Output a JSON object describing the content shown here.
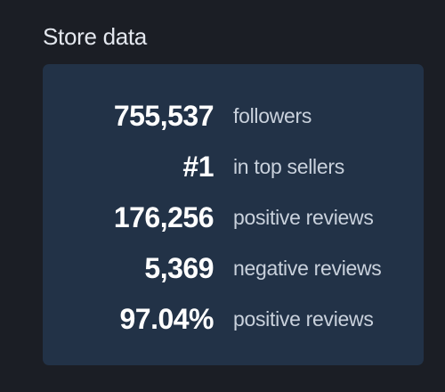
{
  "title": "Store data",
  "stats": [
    {
      "value": "755,537",
      "label": "followers"
    },
    {
      "value": "#1",
      "label": "in top sellers"
    },
    {
      "value": "176,256",
      "label": "positive reviews"
    },
    {
      "value": "5,369",
      "label": "negative reviews"
    },
    {
      "value": "97.04%",
      "label": "positive reviews"
    }
  ]
}
